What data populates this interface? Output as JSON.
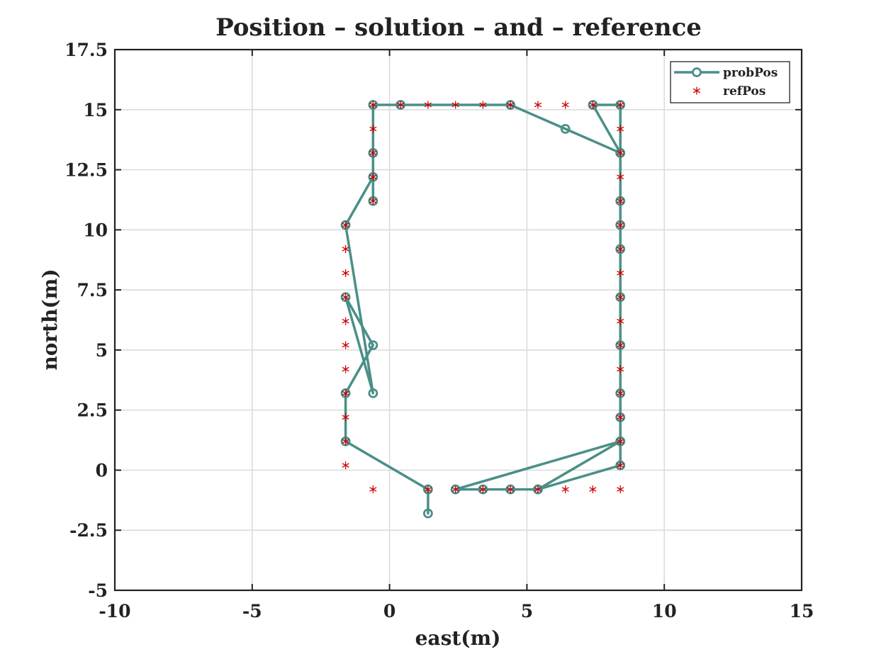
{
  "chart_data": {
    "type": "line",
    "title": "Position – solution – and – reference",
    "xlabel": "east(m)",
    "ylabel": "north(m)",
    "xlim": [
      -10,
      15
    ],
    "ylim": [
      -5,
      17.5
    ],
    "xticks": [
      "-10",
      "-5",
      "0",
      "5",
      "10",
      "15"
    ],
    "yticks": [
      "-5",
      "-2.5",
      "0",
      "2.5",
      "5",
      "7.5",
      "10",
      "12.5",
      "15",
      "17.5"
    ],
    "grid": true,
    "legend_position": "top-right",
    "colors": {
      "probPos": "#4a8f88",
      "refPos": "#cc0000"
    },
    "series": [
      {
        "name": "probPos",
        "style": "line-circle",
        "points": [
          [
            1.4,
            -1.8
          ],
          [
            1.4,
            -0.8
          ],
          [
            -1.6,
            1.2
          ],
          [
            -1.6,
            3.2
          ],
          [
            -0.6,
            5.2
          ],
          [
            -1.6,
            7.2
          ],
          [
            -0.6,
            3.2
          ],
          [
            -1.6,
            10.2
          ],
          [
            -0.6,
            12.2
          ],
          [
            -0.6,
            11.2
          ],
          [
            -0.6,
            13.2
          ],
          [
            -0.6,
            15.2
          ],
          [
            0.4,
            15.2
          ],
          [
            4.4,
            15.2
          ],
          [
            6.4,
            14.2
          ],
          [
            8.4,
            13.2
          ],
          [
            7.4,
            15.2
          ],
          [
            8.4,
            15.2
          ],
          [
            8.4,
            13.2
          ],
          [
            8.4,
            11.2
          ],
          [
            8.4,
            10.2
          ],
          [
            8.4,
            9.2
          ],
          [
            8.4,
            7.2
          ],
          [
            8.4,
            5.2
          ],
          [
            8.4,
            3.2
          ],
          [
            8.4,
            2.2
          ],
          [
            8.4,
            1.2
          ],
          [
            8.4,
            0.2
          ],
          [
            5.4,
            -0.8
          ],
          [
            8.4,
            1.2
          ],
          [
            2.4,
            -0.8
          ],
          [
            3.4,
            -0.8
          ],
          [
            4.4,
            -0.8
          ],
          [
            5.4,
            -0.8
          ]
        ]
      },
      {
        "name": "refPos",
        "style": "asterisk",
        "points": [
          [
            -0.6,
            -0.8
          ],
          [
            1.4,
            -0.8
          ],
          [
            2.4,
            -0.8
          ],
          [
            3.4,
            -0.8
          ],
          [
            4.4,
            -0.8
          ],
          [
            5.4,
            -0.8
          ],
          [
            6.4,
            -0.8
          ],
          [
            7.4,
            -0.8
          ],
          [
            8.4,
            -0.8
          ],
          [
            8.4,
            0.2
          ],
          [
            8.4,
            1.2
          ],
          [
            8.4,
            2.2
          ],
          [
            8.4,
            3.2
          ],
          [
            8.4,
            4.2
          ],
          [
            8.4,
            5.2
          ],
          [
            8.4,
            6.2
          ],
          [
            8.4,
            7.2
          ],
          [
            8.4,
            8.2
          ],
          [
            8.4,
            9.2
          ],
          [
            8.4,
            10.2
          ],
          [
            8.4,
            11.2
          ],
          [
            8.4,
            12.2
          ],
          [
            8.4,
            13.2
          ],
          [
            8.4,
            14.2
          ],
          [
            8.4,
            15.2
          ],
          [
            7.4,
            15.2
          ],
          [
            6.4,
            15.2
          ],
          [
            5.4,
            15.2
          ],
          [
            4.4,
            15.2
          ],
          [
            3.4,
            15.2
          ],
          [
            2.4,
            15.2
          ],
          [
            1.4,
            15.2
          ],
          [
            0.4,
            15.2
          ],
          [
            -0.6,
            15.2
          ],
          [
            -0.6,
            14.2
          ],
          [
            -0.6,
            13.2
          ],
          [
            -0.6,
            12.2
          ],
          [
            -0.6,
            11.2
          ],
          [
            -1.6,
            10.2
          ],
          [
            -1.6,
            9.2
          ],
          [
            -1.6,
            8.2
          ],
          [
            -1.6,
            7.2
          ],
          [
            -1.6,
            6.2
          ],
          [
            -1.6,
            5.2
          ],
          [
            -1.6,
            4.2
          ],
          [
            -1.6,
            3.2
          ],
          [
            -1.6,
            2.2
          ],
          [
            -1.6,
            1.2
          ],
          [
            -1.6,
            0.2
          ]
        ]
      }
    ]
  }
}
